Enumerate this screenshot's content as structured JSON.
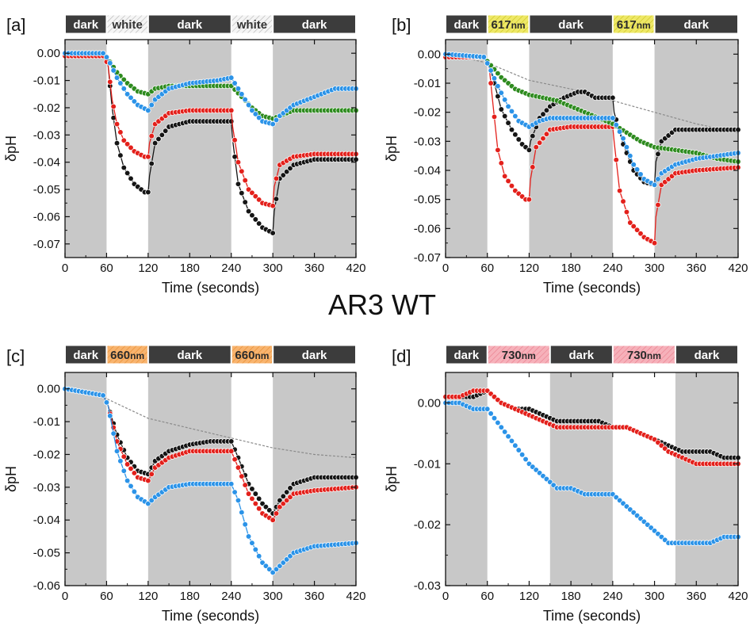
{
  "figure_title": "AR3 WT",
  "colors": {
    "black": "#151515",
    "red": "#e3201b",
    "green": "#2e8b1f",
    "blue": "#2b93e8",
    "ref": "#8a8a8a",
    "dark_shade": "#c8c8c8",
    "dark_bar": "#3c3c3c",
    "white_bar": "#f3f3f3",
    "yellow_bar": "#e8e04a",
    "orange_bar": "#f6a04a",
    "pink_bar": "#f29aa6"
  },
  "chart_data": [
    {
      "panel": "[a]",
      "type": "line",
      "xlabel": "Time (seconds)",
      "ylabel": "δpH",
      "xlim": [
        0,
        420
      ],
      "ylim": [
        -0.075,
        0.005
      ],
      "xticks": [
        0,
        60,
        120,
        180,
        240,
        300,
        360,
        420
      ],
      "yticks": [
        0.0,
        -0.01,
        -0.02,
        -0.03,
        -0.04,
        -0.05,
        -0.06,
        -0.07
      ],
      "ytick_labels": [
        "0.00",
        "-0.01",
        "-0.02",
        "-0.03",
        "-0.04",
        "-0.05",
        "-0.06",
        "-0.07"
      ],
      "phases": [
        {
          "label": "dark",
          "unit": "",
          "kind": "dark",
          "start": 0,
          "end": 60
        },
        {
          "label": "white",
          "unit": "",
          "kind": "white",
          "start": 60,
          "end": 120
        },
        {
          "label": "dark",
          "unit": "",
          "kind": "dark",
          "start": 120,
          "end": 240
        },
        {
          "label": "white",
          "unit": "",
          "kind": "white",
          "start": 240,
          "end": 300
        },
        {
          "label": "dark",
          "unit": "",
          "kind": "dark",
          "start": 300,
          "end": 420
        }
      ],
      "series": [
        {
          "color": "black",
          "x": [
            0,
            55,
            62,
            68,
            75,
            85,
            100,
            115,
            120,
            122,
            130,
            150,
            180,
            220,
            240,
            242,
            250,
            265,
            285,
            300,
            302,
            310,
            330,
            360,
            420
          ],
          "y": [
            -0.001,
            -0.001,
            -0.004,
            -0.02,
            -0.033,
            -0.042,
            -0.048,
            -0.051,
            -0.051,
            -0.045,
            -0.033,
            -0.027,
            -0.025,
            -0.025,
            -0.025,
            -0.032,
            -0.048,
            -0.058,
            -0.064,
            -0.066,
            -0.058,
            -0.046,
            -0.041,
            -0.039,
            -0.039
          ]
        },
        {
          "color": "red",
          "x": [
            0,
            55,
            62,
            68,
            75,
            85,
            100,
            115,
            120,
            122,
            130,
            150,
            180,
            220,
            240,
            242,
            250,
            265,
            285,
            300,
            302,
            310,
            330,
            360,
            420
          ],
          "y": [
            -0.001,
            -0.001,
            -0.004,
            -0.017,
            -0.026,
            -0.032,
            -0.036,
            -0.038,
            -0.038,
            -0.033,
            -0.026,
            -0.022,
            -0.021,
            -0.021,
            -0.021,
            -0.027,
            -0.04,
            -0.05,
            -0.055,
            -0.056,
            -0.049,
            -0.041,
            -0.038,
            -0.037,
            -0.037
          ]
        },
        {
          "color": "green",
          "x": [
            0,
            55,
            62,
            75,
            90,
            105,
            120,
            130,
            150,
            180,
            220,
            240,
            255,
            270,
            285,
            300,
            310,
            330,
            360,
            420
          ],
          "y": [
            0.0,
            0.0,
            -0.002,
            -0.007,
            -0.011,
            -0.014,
            -0.015,
            -0.013,
            -0.012,
            -0.012,
            -0.012,
            -0.012,
            -0.016,
            -0.02,
            -0.023,
            -0.024,
            -0.023,
            -0.021,
            -0.021,
            -0.021
          ]
        },
        {
          "color": "blue",
          "x": [
            0,
            55,
            62,
            75,
            90,
            105,
            120,
            130,
            150,
            180,
            220,
            240,
            255,
            270,
            285,
            300,
            310,
            330,
            360,
            390,
            420
          ],
          "y": [
            0.0,
            0.0,
            -0.002,
            -0.009,
            -0.015,
            -0.019,
            -0.021,
            -0.017,
            -0.013,
            -0.011,
            -0.01,
            -0.009,
            -0.015,
            -0.021,
            -0.025,
            -0.026,
            -0.023,
            -0.019,
            -0.016,
            -0.013,
            -0.013
          ]
        }
      ]
    },
    {
      "panel": "[b]",
      "type": "line",
      "xlabel": "Time (seconds)",
      "ylabel": "δpH",
      "xlim": [
        0,
        420
      ],
      "ylim": [
        -0.07,
        0.005
      ],
      "xticks": [
        0,
        60,
        120,
        180,
        240,
        300,
        360,
        420
      ],
      "yticks": [
        0.0,
        -0.01,
        -0.02,
        -0.03,
        -0.04,
        -0.05,
        -0.06,
        -0.07
      ],
      "ytick_labels": [
        "0.00",
        "-0.01",
        "-0.02",
        "-0.03",
        "-0.04",
        "-0.05",
        "-0.06",
        "-0.07"
      ],
      "phases": [
        {
          "label": "dark",
          "unit": "",
          "kind": "dark",
          "start": 0,
          "end": 60
        },
        {
          "label": "617",
          "unit": "nm",
          "kind": "yellow",
          "start": 60,
          "end": 120
        },
        {
          "label": "dark",
          "unit": "",
          "kind": "dark",
          "start": 120,
          "end": 240
        },
        {
          "label": "617",
          "unit": "nm",
          "kind": "yellow",
          "start": 240,
          "end": 300
        },
        {
          "label": "dark",
          "unit": "",
          "kind": "dark",
          "start": 300,
          "end": 420
        }
      ],
      "series": [
        {
          "color": "ref",
          "dashed": true,
          "x": [
            0,
            60,
            120,
            180,
            240,
            300,
            360,
            420
          ],
          "y": [
            0.0,
            -0.003,
            -0.009,
            -0.012,
            -0.016,
            -0.02,
            -0.024,
            -0.027
          ]
        },
        {
          "color": "black",
          "x": [
            0,
            55,
            62,
            70,
            80,
            95,
            110,
            120,
            122,
            135,
            150,
            170,
            190,
            200,
            215,
            240,
            242,
            255,
            270,
            285,
            300,
            302,
            310,
            330,
            360,
            420
          ],
          "y": [
            -0.001,
            -0.001,
            -0.003,
            -0.01,
            -0.019,
            -0.026,
            -0.031,
            -0.033,
            -0.03,
            -0.022,
            -0.018,
            -0.015,
            -0.013,
            -0.013,
            -0.015,
            -0.015,
            -0.02,
            -0.031,
            -0.04,
            -0.044,
            -0.045,
            -0.037,
            -0.03,
            -0.026,
            -0.026,
            -0.026
          ]
        },
        {
          "color": "red",
          "x": [
            0,
            55,
            62,
            68,
            75,
            85,
            100,
            115,
            120,
            122,
            130,
            150,
            180,
            220,
            240,
            242,
            250,
            265,
            285,
            300,
            302,
            310,
            330,
            360,
            420
          ],
          "y": [
            -0.001,
            -0.001,
            -0.003,
            -0.017,
            -0.033,
            -0.042,
            -0.047,
            -0.05,
            -0.05,
            -0.043,
            -0.032,
            -0.026,
            -0.025,
            -0.025,
            -0.025,
            -0.03,
            -0.047,
            -0.058,
            -0.063,
            -0.065,
            -0.056,
            -0.045,
            -0.041,
            -0.04,
            -0.039
          ]
        },
        {
          "color": "green",
          "x": [
            0,
            55,
            62,
            80,
            100,
            120,
            140,
            160,
            180,
            200,
            220,
            240,
            260,
            280,
            300,
            330,
            360,
            390,
            420
          ],
          "y": [
            0.0,
            -0.001,
            -0.003,
            -0.008,
            -0.012,
            -0.014,
            -0.015,
            -0.016,
            -0.018,
            -0.02,
            -0.022,
            -0.024,
            -0.027,
            -0.03,
            -0.032,
            -0.033,
            -0.034,
            -0.036,
            -0.037
          ]
        },
        {
          "color": "blue",
          "x": [
            0,
            55,
            62,
            75,
            90,
            105,
            120,
            135,
            150,
            180,
            210,
            240,
            255,
            270,
            285,
            300,
            310,
            330,
            360,
            390,
            420
          ],
          "y": [
            0.0,
            -0.001,
            -0.004,
            -0.011,
            -0.018,
            -0.023,
            -0.025,
            -0.023,
            -0.022,
            -0.022,
            -0.022,
            -0.022,
            -0.029,
            -0.038,
            -0.043,
            -0.045,
            -0.041,
            -0.038,
            -0.036,
            -0.035,
            -0.034
          ]
        }
      ]
    },
    {
      "panel": "[c]",
      "type": "line",
      "xlabel": "Time (seconds)",
      "ylabel": "δpH",
      "xlim": [
        0,
        420
      ],
      "ylim": [
        -0.06,
        0.005
      ],
      "xticks": [
        0,
        60,
        120,
        180,
        240,
        300,
        360,
        420
      ],
      "yticks": [
        0.0,
        -0.01,
        -0.02,
        -0.03,
        -0.04,
        -0.05,
        -0.06
      ],
      "ytick_labels": [
        "0.00",
        "-0.01",
        "-0.02",
        "-0.03",
        "-0.04",
        "-0.05",
        "-0.06"
      ],
      "phases": [
        {
          "label": "dark",
          "unit": "",
          "kind": "dark",
          "start": 0,
          "end": 60
        },
        {
          "label": "660",
          "unit": "nm",
          "kind": "orange",
          "start": 60,
          "end": 120
        },
        {
          "label": "dark",
          "unit": "",
          "kind": "dark",
          "start": 120,
          "end": 240
        },
        {
          "label": "660",
          "unit": "nm",
          "kind": "orange",
          "start": 240,
          "end": 300
        },
        {
          "label": "dark",
          "unit": "",
          "kind": "dark",
          "start": 300,
          "end": 420
        }
      ],
      "series": [
        {
          "color": "ref",
          "dashed": true,
          "x": [
            0,
            60,
            120,
            180,
            240,
            300,
            360,
            420
          ],
          "y": [
            0.0,
            -0.003,
            -0.009,
            -0.012,
            -0.015,
            -0.018,
            -0.02,
            -0.021
          ]
        },
        {
          "color": "black",
          "x": [
            0,
            55,
            62,
            75,
            90,
            105,
            120,
            130,
            150,
            180,
            210,
            240,
            250,
            265,
            285,
            300,
            310,
            330,
            360,
            420
          ],
          "y": [
            0.0,
            -0.002,
            -0.005,
            -0.014,
            -0.021,
            -0.025,
            -0.026,
            -0.022,
            -0.019,
            -0.017,
            -0.016,
            -0.016,
            -0.021,
            -0.029,
            -0.035,
            -0.038,
            -0.034,
            -0.029,
            -0.027,
            -0.027
          ]
        },
        {
          "color": "red",
          "x": [
            0,
            55,
            62,
            75,
            90,
            105,
            120,
            130,
            150,
            180,
            210,
            240,
            250,
            265,
            285,
            300,
            310,
            330,
            360,
            420
          ],
          "y": [
            0.0,
            -0.002,
            -0.005,
            -0.016,
            -0.023,
            -0.027,
            -0.028,
            -0.024,
            -0.021,
            -0.019,
            -0.019,
            -0.019,
            -0.024,
            -0.032,
            -0.038,
            -0.04,
            -0.036,
            -0.032,
            -0.031,
            -0.03
          ]
        },
        {
          "color": "blue",
          "x": [
            0,
            55,
            62,
            75,
            90,
            105,
            120,
            130,
            150,
            180,
            210,
            240,
            250,
            265,
            285,
            300,
            310,
            330,
            360,
            420
          ],
          "y": [
            0.0,
            -0.002,
            -0.005,
            -0.019,
            -0.028,
            -0.033,
            -0.035,
            -0.033,
            -0.03,
            -0.029,
            -0.029,
            -0.029,
            -0.034,
            -0.045,
            -0.053,
            -0.056,
            -0.054,
            -0.05,
            -0.048,
            -0.047
          ]
        }
      ]
    },
    {
      "panel": "[d]",
      "type": "line",
      "xlabel": "Time (seconds)",
      "ylabel": "δpH",
      "xlim": [
        0,
        420
      ],
      "ylim": [
        -0.03,
        0.005
      ],
      "xticks": [
        0,
        60,
        120,
        180,
        240,
        300,
        360,
        420
      ],
      "yticks": [
        0.0,
        -0.01,
        -0.02,
        -0.03
      ],
      "ytick_labels": [
        "0.00",
        "-0.01",
        "-0.02",
        "-0.03"
      ],
      "phases": [
        {
          "label": "dark",
          "unit": "",
          "kind": "dark",
          "start": 0,
          "end": 60
        },
        {
          "label": "730",
          "unit": "nm",
          "kind": "pink",
          "start": 60,
          "end": 150
        },
        {
          "label": "dark",
          "unit": "",
          "kind": "dark",
          "start": 150,
          "end": 240
        },
        {
          "label": "730",
          "unit": "nm",
          "kind": "pink",
          "start": 240,
          "end": 330
        },
        {
          "label": "dark",
          "unit": "",
          "kind": "dark",
          "start": 330,
          "end": 420
        }
      ],
      "series": [
        {
          "color": "black",
          "x": [
            0,
            20,
            40,
            60,
            80,
            100,
            120,
            140,
            160,
            180,
            200,
            220,
            240,
            260,
            280,
            300,
            320,
            340,
            360,
            380,
            400,
            420
          ],
          "y": [
            0.001,
            0.001,
            0.001,
            0.002,
            0.0,
            -0.001,
            -0.001,
            -0.002,
            -0.003,
            -0.003,
            -0.003,
            -0.003,
            -0.004,
            -0.004,
            -0.005,
            -0.006,
            -0.007,
            -0.008,
            -0.008,
            -0.008,
            -0.009,
            -0.009
          ]
        },
        {
          "color": "red",
          "x": [
            0,
            20,
            40,
            60,
            80,
            100,
            120,
            140,
            160,
            180,
            200,
            220,
            240,
            260,
            280,
            300,
            320,
            340,
            360,
            380,
            400,
            420
          ],
          "y": [
            0.001,
            0.001,
            0.002,
            0.002,
            0.0,
            -0.001,
            -0.002,
            -0.003,
            -0.004,
            -0.004,
            -0.004,
            -0.004,
            -0.004,
            -0.004,
            -0.005,
            -0.006,
            -0.008,
            -0.009,
            -0.01,
            -0.01,
            -0.01,
            -0.01
          ]
        },
        {
          "color": "blue",
          "x": [
            0,
            20,
            40,
            60,
            80,
            100,
            120,
            140,
            160,
            180,
            200,
            220,
            240,
            260,
            280,
            300,
            320,
            340,
            360,
            380,
            400,
            420
          ],
          "y": [
            0.0,
            0.0,
            -0.001,
            -0.001,
            -0.004,
            -0.007,
            -0.01,
            -0.012,
            -0.014,
            -0.014,
            -0.015,
            -0.015,
            -0.015,
            -0.017,
            -0.019,
            -0.021,
            -0.023,
            -0.023,
            -0.023,
            -0.023,
            -0.022,
            -0.022
          ]
        }
      ]
    }
  ]
}
